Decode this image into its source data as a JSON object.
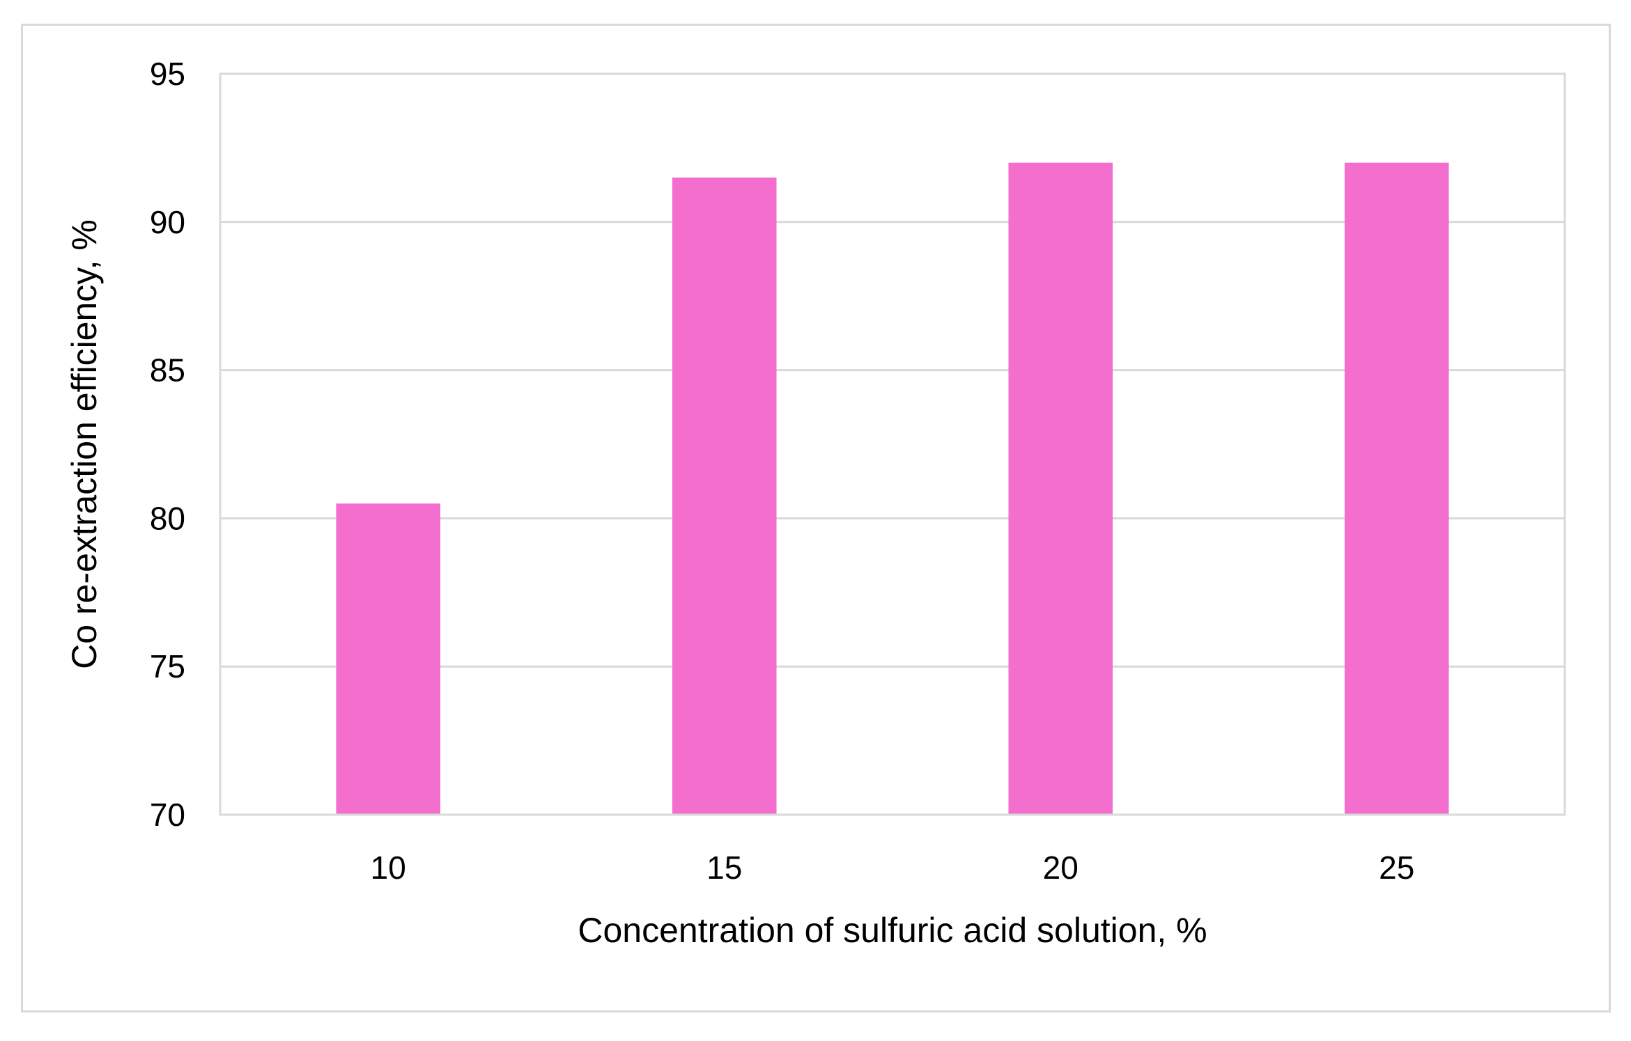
{
  "chart_data": {
    "type": "bar",
    "categories": [
      "10",
      "15",
      "20",
      "25"
    ],
    "values": [
      80.5,
      91.5,
      92,
      92
    ],
    "xlabel": "Concentration of sulfuric acid solution, %",
    "ylabel": "Co re-extraction efficiency, %",
    "ylim": [
      70,
      95
    ],
    "yticks": [
      70,
      75,
      80,
      85,
      90,
      95
    ],
    "grid": true,
    "legend": "none",
    "colors": {
      "bar": "#f46fcd",
      "grid": "#d9d9d9",
      "frame": "#d9d9d9"
    }
  }
}
